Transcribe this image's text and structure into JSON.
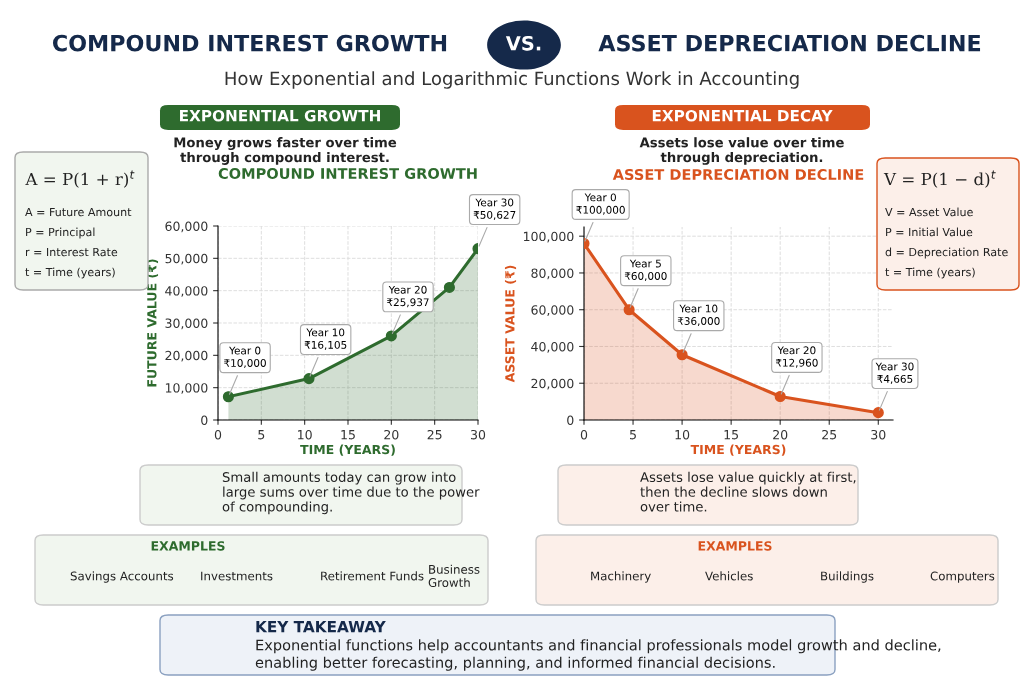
{
  "chart_data": [
    {
      "type": "other",
      "title": "COMPOUND INTEREST GROWTH",
      "subtitle": "How Exponential and Logarithmic Functions Work in Accounting",
      "annotations": [
        "VS.",
        "ASSET DEPRECIATION DECLINE",
        "KEY TAKEAWAY",
        "Exponential functions help accountants and financial professionals model growth and decline,\nenabling better forecasting, planning, and informed financial decisions."
      ]
    },
    {
      "type": "area",
      "title": "COMPOUND INTEREST GROWTH",
      "xlabel": "TIME (YEARS)",
      "ylabel": "FUTURE VALUE (₹)",
      "x": [
        1.2,
        10.5,
        20,
        26.7,
        30
      ],
      "series": [
        {
          "color": "#2e6b2e",
          "values": [
            7200,
            12800,
            26000,
            41000,
            53000
          ]
        }
      ],
      "xlim": [
        0,
        30
      ],
      "ylim": [
        0,
        60000
      ],
      "xticks": [
        0,
        5,
        10,
        15,
        20,
        25,
        30
      ],
      "yticks": [
        {
          "value": 0,
          "label": "0"
        },
        {
          "value": 10000,
          "label": "10,000"
        },
        {
          "value": 20000,
          "label": "20,000"
        },
        {
          "value": 30000,
          "label": "30,000"
        },
        {
          "value": 40000,
          "label": "40,000"
        },
        {
          "value": 50000,
          "label": "50,000"
        },
        {
          "value": 60000,
          "label": "60,000"
        }
      ],
      "grid": true,
      "marker": "circle",
      "line_style": "solid",
      "annotations": [
        "EXPONENTIAL GROWTH",
        "Money grows faster over time\nthrough compound interest.",
        "A = P(1 + r)$^{t}$",
        "A = Future Amount",
        "P = Principal",
        "r = Interest Rate",
        "t = Time (years)",
        "Small amounts today can grow into\nlarge sums over time due to the power\nof compounding.",
        "EXAMPLES",
        "Savings Accounts",
        "Investments",
        "Retirement Funds",
        "Business\nGrowth",
        {
          "text": "Year 0\n₹10,000",
          "x": 1.2,
          "y": 7200
        },
        {
          "text": "Year 10\n₹16,105",
          "x": 10.5,
          "y": 12800
        },
        {
          "text": "Year 20\n₹25,937",
          "x": 20,
          "y": 26000
        },
        {
          "text": "Year 30\n₹50,627",
          "x": 30,
          "y": 53000
        }
      ]
    },
    {
      "type": "area",
      "title": "ASSET DEPRECIATION DECLINE",
      "xlabel": "TIME (YEARS)",
      "ylabel": "ASSET VALUE (₹)",
      "x": [
        0,
        4.6,
        10,
        20,
        30
      ],
      "series": [
        {
          "color": "#d9531e",
          "values": [
            96000,
            60000,
            35500,
            12800,
            4000
          ]
        }
      ],
      "xlim": [
        0,
        31.5
      ],
      "ylim": [
        0,
        105000
      ],
      "xticks": [
        0,
        5,
        10,
        15,
        20,
        25,
        30
      ],
      "yticks": [
        {
          "value": 0,
          "label": "0"
        },
        {
          "value": 20000,
          "label": "20,000"
        },
        {
          "value": 40000,
          "label": "40,000"
        },
        {
          "value": 60000,
          "label": "60,000"
        },
        {
          "value": 80000,
          "label": "80,000"
        },
        {
          "value": 100000,
          "label": "100,000"
        }
      ],
      "grid": true,
      "marker": "circle",
      "line_style": "solid",
      "annotations": [
        "EXPONENTIAL DECAY",
        "Assets lose value over time\nthrough depreciation.",
        "V = P(1 − d)$^{t}$",
        "V = Asset Value",
        "P = Initial Value",
        "d = Depreciation Rate",
        "t = Time (years)",
        "Assets lose value quickly at first,\nthen the decline slows down\nover time.",
        "EXAMPLES",
        "Machinery",
        "Vehicles",
        "Buildings",
        "Computers",
        {
          "text": "Year 0\n₹100,000",
          "x": 0,
          "y": 96000
        },
        {
          "text": "Year 5\n₹60,000",
          "x": 4.6,
          "y": 60000
        },
        {
          "text": "Year 10\n₹36,000",
          "x": 10,
          "y": 35500
        },
        {
          "text": "Year 20\n₹12,960",
          "x": 20,
          "y": 12800
        },
        {
          "text": "Year 30\n₹4,665",
          "x": 30,
          "y": 4000
        }
      ]
    }
  ]
}
